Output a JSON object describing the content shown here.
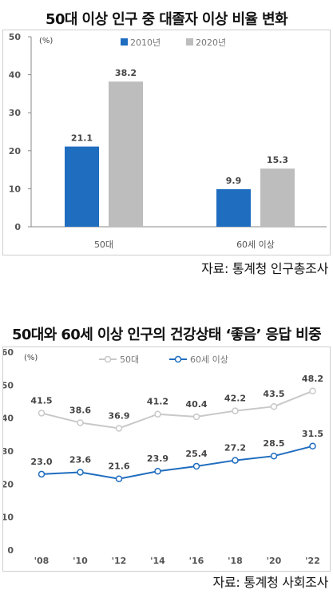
{
  "chart1": {
    "title": "50대 이상 인구 중 대졸자 이상 비율 변화",
    "unit": "(%)",
    "source": "자료: 통계청 인구총조사",
    "chart_data": {
      "type": "bar",
      "categories": [
        "50대",
        "60세 이상"
      ],
      "series": [
        {
          "name": "2010년",
          "values": [
            21.1,
            9.9
          ],
          "color": "#1f6dbf"
        },
        {
          "name": "2020년",
          "values": [
            38.2,
            15.3
          ],
          "color": "#bdbdbd"
        }
      ],
      "ylim": [
        0,
        50
      ],
      "yticks": [
        0,
        10,
        20,
        30,
        40,
        50
      ],
      "legend": "top-center"
    }
  },
  "chart2": {
    "title": "50대와 60세 이상 인구의 건강상태 ‘좋음’ 응답 비중",
    "unit": "(%)",
    "source": "자료: 통계청 사회조사",
    "chart_data": {
      "type": "line",
      "x": [
        "'08",
        "'10",
        "'12",
        "'14",
        "'16",
        "'18",
        "'20",
        "'22"
      ],
      "series": [
        {
          "name": "50대",
          "values": [
            41.5,
            38.6,
            36.9,
            41.2,
            40.4,
            42.2,
            43.5,
            48.2
          ],
          "color": "#c8c8c8"
        },
        {
          "name": "60세 이상",
          "values": [
            23.0,
            23.6,
            21.6,
            23.9,
            25.4,
            27.2,
            28.5,
            31.5
          ],
          "color": "#1f6dbf"
        }
      ],
      "ylim": [
        0,
        60
      ],
      "yticks": [
        0,
        10,
        20,
        30,
        40,
        50,
        60
      ],
      "legend": "top-center"
    }
  }
}
